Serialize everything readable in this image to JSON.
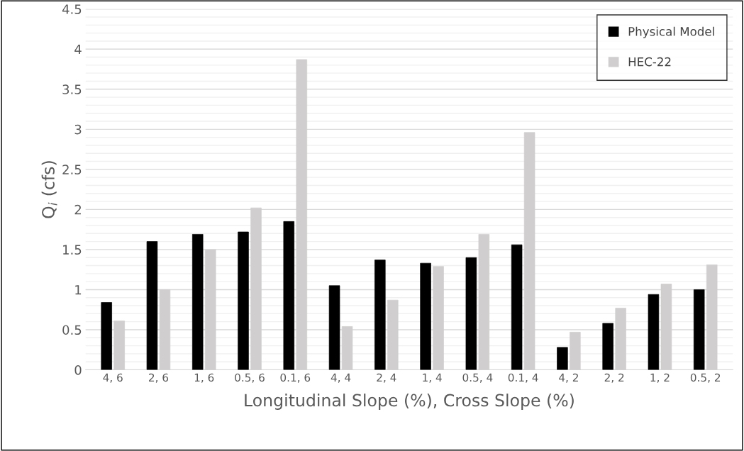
{
  "chart_data": {
    "type": "bar",
    "xlabel": "Longitudinal Slope (%), Cross Slope (%)",
    "ylabel": "Q$_{i}$ (cfs)",
    "categories": [
      "4, 6",
      "2, 6",
      "1, 6",
      "0.5, 6",
      "0.1, 6",
      "4, 4",
      "2, 4",
      "1, 4",
      "0.5, 4",
      "0.1, 4",
      "4, 2",
      "2, 2",
      "1, 2",
      "0.5, 2"
    ],
    "series": [
      {
        "name": "Physical Model",
        "color": "#000000",
        "values": [
          0.84,
          1.6,
          1.69,
          1.72,
          1.85,
          1.05,
          1.37,
          1.33,
          1.4,
          1.56,
          0.28,
          0.58,
          0.94,
          1.0
        ]
      },
      {
        "name": "HEC-22",
        "color": "#d0cece",
        "values": [
          0.61,
          1.0,
          1.5,
          2.02,
          3.87,
          0.54,
          0.87,
          1.29,
          1.69,
          2.96,
          0.47,
          0.77,
          1.07,
          1.31
        ]
      }
    ],
    "ylim": [
      0,
      4.5
    ],
    "yticks": [
      0,
      0.5,
      1,
      1.5,
      2,
      2.5,
      3,
      3.5,
      4,
      4.5
    ],
    "grid": "y",
    "legend": "top right"
  }
}
